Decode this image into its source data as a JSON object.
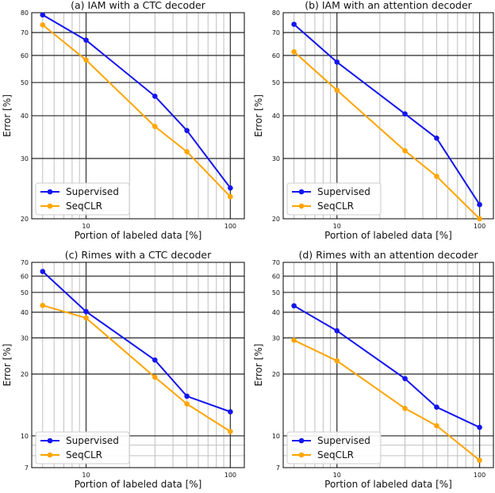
{
  "colors": {
    "supervised": "#1414f0",
    "seqclr": "#ffa500",
    "grid_major": "#3a3a3a",
    "grid_minor": "#b8b8b8",
    "frame": "#000000"
  },
  "chart_data": [
    {
      "type": "line",
      "title": "(a) IAM with a CTC decoder",
      "xlabel": "Portion of labeled data [%]",
      "ylabel": "Error [%]",
      "xscale": "log",
      "yscale": "log",
      "xlim": [
        4.2,
        125
      ],
      "ylim": [
        20,
        80
      ],
      "x_ticks": [
        10,
        100
      ],
      "y_ticks": [
        20,
        30,
        40,
        50,
        60,
        70,
        80
      ],
      "legend_position": "lower-left",
      "x": [
        5,
        10,
        30,
        50,
        100
      ],
      "series": [
        {
          "name": "Supervised",
          "color_key": "supervised",
          "values": [
            78.8,
            66.5,
            45.6,
            36.2,
            24.6
          ]
        },
        {
          "name": "SeqCLR",
          "color_key": "seqclr",
          "values": [
            73.7,
            58.2,
            37.2,
            31.4,
            23.2
          ]
        }
      ]
    },
    {
      "type": "line",
      "title": "(b) IAM with an attention decoder",
      "xlabel": "Portion of labeled data [%]",
      "ylabel": "Error [%]",
      "xscale": "log",
      "yscale": "log",
      "xlim": [
        4.2,
        125
      ],
      "ylim": [
        20,
        80
      ],
      "x_ticks": [
        10,
        100
      ],
      "y_ticks": [
        20,
        30,
        40,
        50,
        60,
        70,
        80
      ],
      "legend_position": "lower-left",
      "x": [
        5,
        10,
        30,
        50,
        100
      ],
      "series": [
        {
          "name": "Supervised",
          "color_key": "supervised",
          "values": [
            74.0,
            57.4,
            40.5,
            34.4,
            22.0
          ]
        },
        {
          "name": "SeqCLR",
          "color_key": "seqclr",
          "values": [
            61.5,
            47.5,
            31.6,
            26.6,
            20.0
          ]
        }
      ]
    },
    {
      "type": "line",
      "title": "(c) Rimes with a CTC decoder",
      "xlabel": "Portion of labeled data [%]",
      "ylabel": "Error [%]",
      "xscale": "log",
      "yscale": "log",
      "xlim": [
        4.2,
        125
      ],
      "ylim": [
        7,
        70
      ],
      "x_ticks": [
        10,
        100
      ],
      "y_ticks": [
        7,
        10,
        20,
        30,
        40,
        50,
        60,
        70
      ],
      "legend_position": "lower-left",
      "x": [
        5,
        10,
        30,
        50,
        100
      ],
      "series": [
        {
          "name": "Supervised",
          "color_key": "supervised",
          "values": [
            63.2,
            40.3,
            23.4,
            15.6,
            13.1
          ]
        },
        {
          "name": "SeqCLR",
          "color_key": "seqclr",
          "values": [
            43.2,
            37.5,
            19.3,
            14.3,
            10.5
          ]
        }
      ]
    },
    {
      "type": "line",
      "title": "(d) Rimes with an attention decoder",
      "xlabel": "Portion of labeled data [%]",
      "ylabel": "Error [%]",
      "xscale": "log",
      "yscale": "log",
      "xlim": [
        4.2,
        125
      ],
      "ylim": [
        7,
        70
      ],
      "x_ticks": [
        10,
        100
      ],
      "y_ticks": [
        7,
        10,
        20,
        30,
        40,
        50,
        60,
        70
      ],
      "legend_position": "lower-left",
      "x": [
        5,
        10,
        30,
        50,
        100
      ],
      "series": [
        {
          "name": "Supervised",
          "color_key": "supervised",
          "values": [
            43.0,
            32.5,
            19.0,
            13.8,
            11.0
          ]
        },
        {
          "name": "SeqCLR",
          "color_key": "seqclr",
          "values": [
            29.2,
            23.2,
            13.6,
            11.2,
            7.6
          ]
        }
      ]
    }
  ]
}
